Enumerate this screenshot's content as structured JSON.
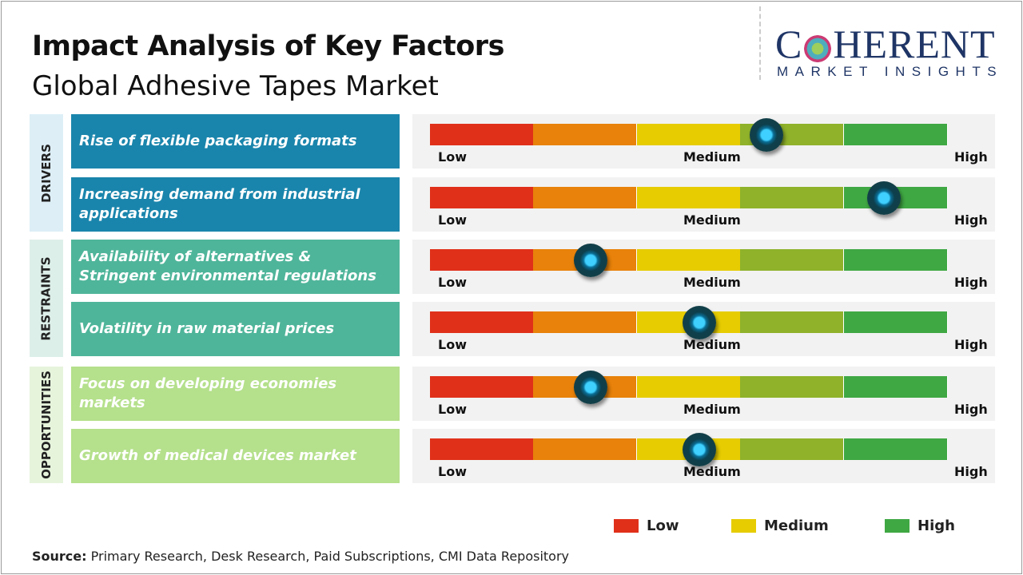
{
  "title": "Impact Analysis of Key Factors",
  "subtitle": "Global Adhesive Tapes Market",
  "logo": {
    "main": "COHERENT",
    "sub": "MARKET INSIGHTS"
  },
  "scale_labels": {
    "low": "Low",
    "medium": "Medium",
    "high": "High"
  },
  "scale_colors": [
    "#e0301a",
    "#e8820a",
    "#e6cc00",
    "#8fb22a",
    "#3fa843"
  ],
  "categories": [
    {
      "label": "DRIVERS",
      "bg": "#ddeef6"
    },
    {
      "label": "RESTRAINTS",
      "bg": "#ddefe9"
    },
    {
      "label": "OPPORTUNITIES",
      "bg": "#e6f4dc"
    }
  ],
  "factors": [
    {
      "category": "DRIVERS",
      "text": "Rise of flexible packaging formats",
      "color": "#1a85ac",
      "impact": 0.65
    },
    {
      "category": "DRIVERS",
      "text": "Increasing demand from industrial applications",
      "color": "#1a85ac",
      "impact": 0.877
    },
    {
      "category": "RESTRAINTS",
      "text": "Availability of alternatives & Stringent environmental regulations",
      "color": "#4fb59a",
      "impact": 0.31
    },
    {
      "category": "RESTRAINTS",
      "text": "Volatility in raw material prices",
      "color": "#4fb59a",
      "impact": 0.52
    },
    {
      "category": "OPPORTUNITIES",
      "text": "Focus on developing economies markets",
      "color": "#b5e08c",
      "impact": 0.31
    },
    {
      "category": "OPPORTUNITIES",
      "text": "Growth of medical devices market",
      "color": "#b5e08c",
      "impact": 0.52
    }
  ],
  "legend": [
    {
      "label": "Low",
      "color": "#e0301a"
    },
    {
      "label": "Medium",
      "color": "#e6cc00"
    },
    {
      "label": "High",
      "color": "#3fa843"
    }
  ],
  "source": {
    "label": "Source:",
    "text": " Primary Research, Desk Research, Paid Subscriptions, CMI Data Repository"
  }
}
